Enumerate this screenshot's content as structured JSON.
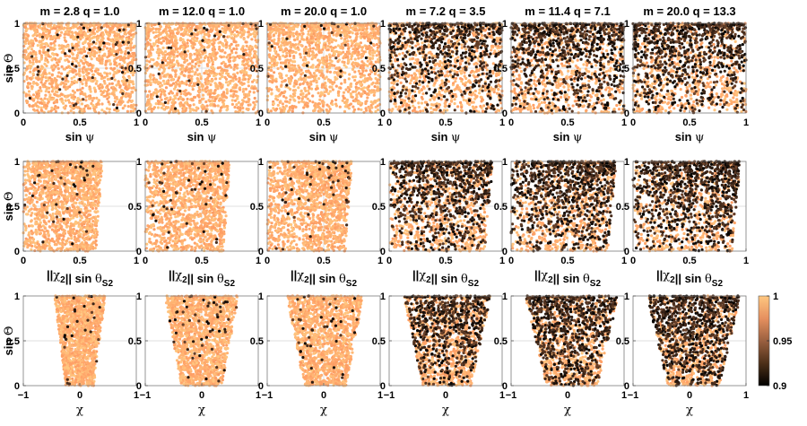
{
  "figure": {
    "description_free": true
  },
  "chart_data": {
    "type": "scatter",
    "layout": "3x6 grid of scatter panels",
    "colormap": {
      "name": "copper",
      "range": [
        0.9,
        1
      ],
      "ticks": [
        "1",
        "0.95",
        "0.9"
      ]
    },
    "columns": [
      {
        "title": "m = 2.8 q = 1.0",
        "m": 2.8,
        "q": 1.0
      },
      {
        "title": "m = 12.0 q = 1.0",
        "m": 12.0,
        "q": 1.0
      },
      {
        "title": "m = 20.0 q = 1.0",
        "m": 20.0,
        "q": 1.0
      },
      {
        "title": "m = 7.2 q = 3.5",
        "m": 7.2,
        "q": 3.5
      },
      {
        "title": "m = 11.4 q = 7.1",
        "m": 11.4,
        "q": 7.1
      },
      {
        "title": "m = 20.0 q = 13.3",
        "m": 20.0,
        "q": 13.3
      }
    ],
    "rows": [
      {
        "ylabel": "sin Θ",
        "xlabel": "sin ψ",
        "xlim": [
          0,
          1
        ],
        "ylim": [
          0,
          1
        ],
        "xticks": [
          "0",
          "0.5",
          "1"
        ],
        "yticks": [
          "0",
          "0.5",
          "1"
        ]
      },
      {
        "ylabel": "sin Θ",
        "xlabel": "||χ2|| sin θS2",
        "xlim": [
          0,
          1
        ],
        "ylim": [
          0,
          1
        ],
        "xticks": [
          "0",
          "0.5",
          "1"
        ],
        "yticks": [
          "0",
          "0.5",
          "1"
        ]
      },
      {
        "ylabel": "sin Θ",
        "xlabel": "χ",
        "xlim": [
          -1,
          1
        ],
        "ylim": [
          0,
          1
        ],
        "xticks": [
          "−1",
          "0",
          "1"
        ],
        "yticks": [
          "0",
          "0.5",
          "1"
        ]
      }
    ],
    "panel_distributions": [
      [
        {
          "n": 1500,
          "shape": "top",
          "dark": 0.03,
          "xmax": 1.0
        },
        {
          "n": 1500,
          "shape": "top",
          "dark": 0.02,
          "xmax": 1.0
        },
        {
          "n": 1500,
          "shape": "top",
          "dark": 0.02,
          "xmax": 1.0
        },
        {
          "n": 1500,
          "shape": "top",
          "dark": 0.45,
          "xmax": 1.0
        },
        {
          "n": 1500,
          "shape": "top",
          "dark": 0.55,
          "xmax": 1.0
        },
        {
          "n": 1500,
          "shape": "top",
          "dark": 0.6,
          "xmax": 1.0
        }
      ],
      [
        {
          "n": 1500,
          "shape": "fan",
          "dark": 0.02,
          "xmax": 0.7
        },
        {
          "n": 1500,
          "shape": "fan",
          "dark": 0.03,
          "xmax": 0.75
        },
        {
          "n": 1500,
          "shape": "fan",
          "dark": 0.03,
          "xmax": 0.75
        },
        {
          "n": 1500,
          "shape": "fan",
          "dark": 0.55,
          "xmax": 0.92
        },
        {
          "n": 1500,
          "shape": "fan",
          "dark": 0.6,
          "xmax": 0.93
        },
        {
          "n": 1500,
          "shape": "fan",
          "dark": 0.65,
          "xmax": 0.95
        }
      ],
      [
        {
          "n": 1500,
          "shape": "column",
          "dark": 0.02,
          "xmin": -0.45,
          "xmax": 0.45
        },
        {
          "n": 1500,
          "shape": "column",
          "dark": 0.03,
          "xmin": -0.65,
          "xmax": 0.65
        },
        {
          "n": 1500,
          "shape": "column",
          "dark": 0.03,
          "xmin": -0.65,
          "xmax": 0.7
        },
        {
          "n": 1500,
          "shape": "column",
          "dark": 0.45,
          "xmin": -0.75,
          "xmax": 0.8
        },
        {
          "n": 1500,
          "shape": "column",
          "dark": 0.55,
          "xmin": -0.75,
          "xmax": 0.9
        },
        {
          "n": 1500,
          "shape": "column",
          "dark": 0.6,
          "xmin": -0.75,
          "xmax": 0.9
        }
      ]
    ]
  }
}
